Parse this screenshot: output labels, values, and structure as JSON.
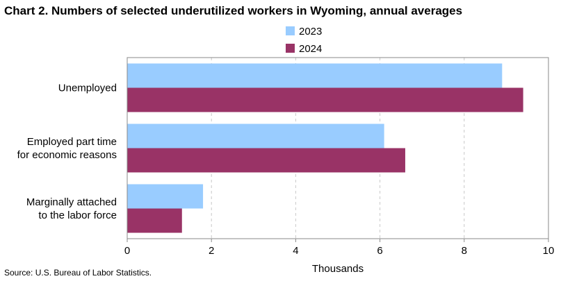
{
  "title": "Chart 2. Numbers of selected underutilized workers in Wyoming, annual averages",
  "source": "Source: U.S. Bureau of Labor Statistics.",
  "colors": {
    "series_2023": "#99ccff",
    "series_2024": "#993366"
  },
  "chart_data": {
    "type": "bar",
    "orientation": "horizontal",
    "title": "Chart 2. Numbers of selected underutilized workers in Wyoming, annual averages",
    "categories": [
      [
        "Unemployed"
      ],
      [
        "Employed part time",
        "for economic reasons"
      ],
      [
        "Marginally attached",
        "to the labor force"
      ]
    ],
    "series": [
      {
        "name": "2023",
        "color": "#99ccff",
        "values": [
          8.9,
          6.1,
          1.8
        ]
      },
      {
        "name": "2024",
        "color": "#993366",
        "values": [
          9.4,
          6.6,
          1.3
        ]
      }
    ],
    "xlabel": "Thousands",
    "ylabel": "",
    "xlim": [
      0,
      10
    ],
    "xticks": [
      "0",
      "2",
      "4",
      "6",
      "8",
      "10"
    ],
    "grid": true,
    "legend": "top-center"
  }
}
